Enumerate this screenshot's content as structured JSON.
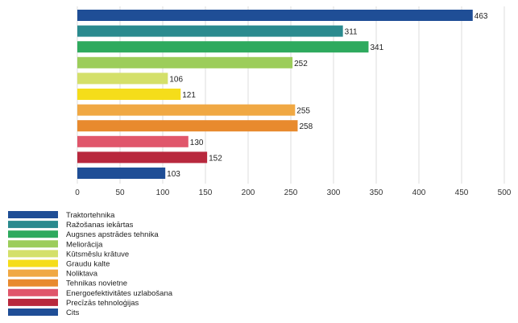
{
  "chart_data": {
    "type": "bar",
    "orientation": "horizontal",
    "categories": [
      "Traktortehnika",
      "Ražošanas iekārtas",
      "Augsnes apstrādes tehnika",
      "Meliorācija",
      "Kūtsmēslu krātuve",
      "Graudu kalte",
      "Noliktava",
      "Tehnikas novietne",
      "Energoefektivitātes uzlabošana",
      "Precīzās tehnoloģijas",
      "Cits"
    ],
    "values": [
      463,
      311,
      341,
      252,
      106,
      121,
      255,
      258,
      130,
      152,
      103
    ],
    "colors": [
      "#1f4e96",
      "#2a8a8e",
      "#2eaa5e",
      "#9ccd5a",
      "#d4e06a",
      "#f5dd1a",
      "#f0a843",
      "#e88a2e",
      "#e0566b",
      "#b8283d",
      "#1f4e96"
    ],
    "xlim": [
      0,
      500
    ],
    "xticks": [
      0,
      50,
      100,
      150,
      200,
      250,
      300,
      350,
      400,
      450,
      500
    ],
    "grid": true,
    "legend": "bottom-left",
    "title": "",
    "xlabel": "",
    "ylabel": ""
  }
}
